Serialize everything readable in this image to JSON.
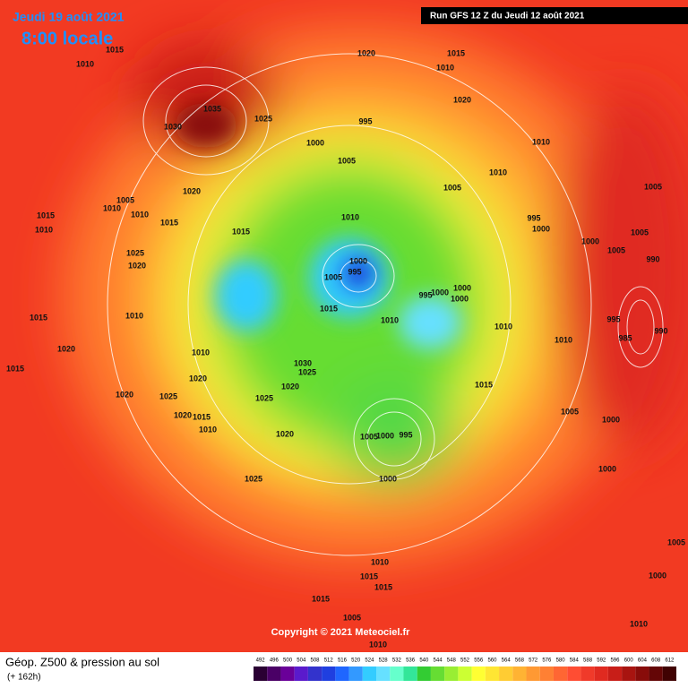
{
  "header": {
    "date": "Jeudi 19 août 2021",
    "time": "8:00 locale",
    "run": "Run GFS 12 Z du Jeudi 12 août 2021"
  },
  "map": {
    "copyright": "Copyright © 2021 Meteociel.fr",
    "isobar_labels": [
      "1010",
      "1015",
      "1035",
      "1030",
      "1025",
      "1020",
      "1015",
      "1010",
      "1020",
      "1000",
      "1005",
      "995",
      "1010",
      "1010",
      "1005",
      "1005",
      "995",
      "1000",
      "1000",
      "1005",
      "1005",
      "990",
      "1020",
      "1005",
      "1010",
      "1010",
      "1015",
      "1015",
      "1010",
      "1015",
      "1010",
      "1000",
      "995",
      "1005",
      "1015",
      "1010",
      "995",
      "1000",
      "1000",
      "1000",
      "1010",
      "1010",
      "995",
      "985",
      "990",
      "1025",
      "1020",
      "1015",
      "1010",
      "1020",
      "1015",
      "1010",
      "1030",
      "1025",
      "1020",
      "1025",
      "1020",
      "1020",
      "1025",
      "1020",
      "1015",
      "1010",
      "1020",
      "1015",
      "1005",
      "1000",
      "995",
      "1000",
      "1005",
      "1000",
      "1025",
      "1000",
      "1005",
      "1000",
      "1010",
      "1015",
      "1015",
      "1015",
      "1010",
      "1005",
      "1010"
    ]
  },
  "footer": {
    "title": "Géop. Z500 & pression au sol",
    "lead": "(+ 162h)",
    "scale": {
      "values": [
        492,
        496,
        500,
        504,
        508,
        512,
        516,
        520,
        524,
        528,
        532,
        536,
        540,
        544,
        548,
        552,
        556,
        560,
        564,
        568,
        572,
        576,
        580,
        584,
        588,
        592,
        596,
        600,
        604,
        608,
        612
      ],
      "colors": [
        "#2a0033",
        "#4a0066",
        "#6a0099",
        "#5a1acc",
        "#3333cc",
        "#1f3fe0",
        "#1f66ff",
        "#3399ff",
        "#33ccff",
        "#66e0ff",
        "#66ffcc",
        "#33e699",
        "#33cc33",
        "#66dd33",
        "#99ee33",
        "#ccff33",
        "#ffff33",
        "#ffe633",
        "#ffcc33",
        "#ffb333",
        "#ff9933",
        "#ff8033",
        "#ff6633",
        "#ff4d33",
        "#f03a2a",
        "#e02a20",
        "#c81e18",
        "#a81410",
        "#880c0a",
        "#640606",
        "#400202"
      ]
    }
  }
}
